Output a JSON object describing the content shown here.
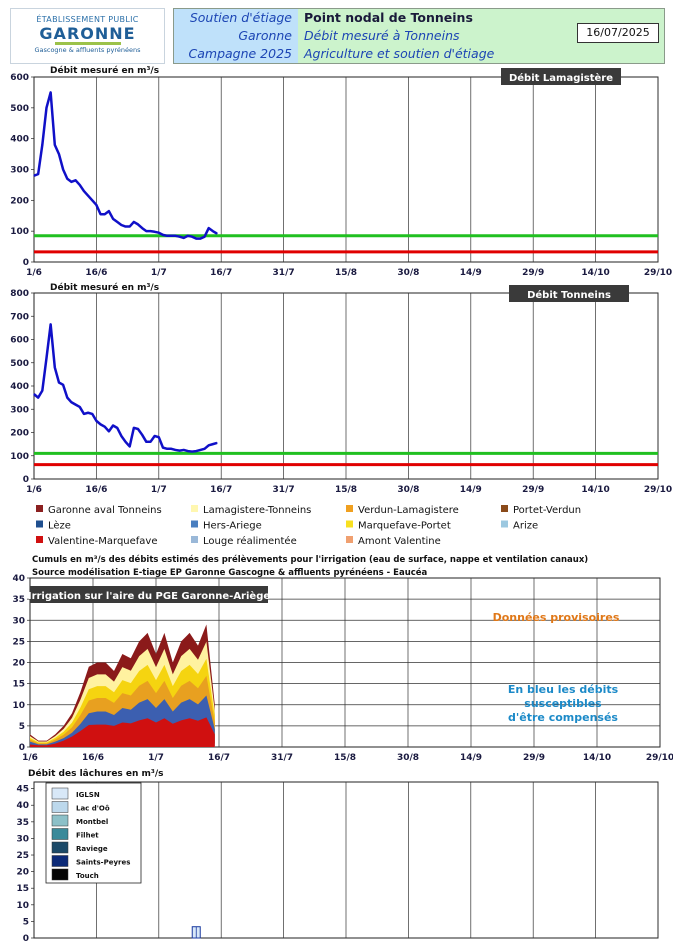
{
  "header": {
    "logo": {
      "line1": "ÉTABLISSEMENT PUBLIC",
      "line2": "GARONNE",
      "line3": "Gascogne & affluents pyrénéens"
    },
    "left_lines": [
      "Soutien d'étiage",
      "Garonne",
      "Campagne 2025"
    ],
    "right_lines": [
      "Point nodal de Tonneins",
      "Débit mesuré à Tonneins",
      "Agriculture et soutien d'étiage"
    ],
    "date": "16/07/2025"
  },
  "colors": {
    "flow": "#1010c8",
    "green_threshold": "#20c020",
    "red_threshold": "#e00000",
    "grid": "#222222",
    "title_box": "#3a3a3a"
  },
  "x_axis_dates": [
    "1/6",
    "16/6",
    "1/7",
    "16/7",
    "31/7",
    "15/8",
    "30/8",
    "14/9",
    "29/9",
    "14/10",
    "29/10"
  ],
  "chart_data": [
    {
      "type": "line",
      "title": "Débit Lamagistère",
      "ylabel": "Débit mesuré en m³/s",
      "ylim": [
        0,
        600
      ],
      "y_ticks": [
        0,
        100,
        200,
        300,
        400,
        500,
        600
      ],
      "x_range_days": [
        0,
        150
      ],
      "x": [
        0,
        1,
        2,
        3,
        4,
        5,
        6,
        7,
        8,
        9,
        10,
        11,
        12,
        13,
        14,
        15,
        16,
        17,
        18,
        19,
        20,
        21,
        22,
        23,
        24,
        25,
        26,
        27,
        28,
        29,
        30,
        31,
        32,
        33,
        34,
        35,
        36,
        37,
        38,
        39,
        40,
        41,
        42,
        43,
        44
      ],
      "values": [
        280,
        285,
        380,
        500,
        550,
        380,
        350,
        300,
        270,
        260,
        265,
        250,
        230,
        215,
        200,
        185,
        155,
        155,
        165,
        140,
        130,
        120,
        115,
        115,
        130,
        122,
        110,
        100,
        100,
        98,
        95,
        88,
        85,
        85,
        85,
        82,
        78,
        85,
        82,
        76,
        76,
        82,
        110,
        100,
        92
      ],
      "thresholds": [
        {
          "value": 85,
          "color": "#20c020"
        },
        {
          "value": 33,
          "color": "#e00000"
        }
      ]
    },
    {
      "type": "line",
      "title": "Débit Tonneins",
      "ylabel": "Débit mesuré en m³/s",
      "ylim": [
        0,
        800
      ],
      "y_ticks": [
        0,
        100,
        200,
        300,
        400,
        500,
        600,
        700,
        800
      ],
      "x_range_days": [
        0,
        150
      ],
      "x": [
        0,
        1,
        2,
        3,
        4,
        5,
        6,
        7,
        8,
        9,
        10,
        11,
        12,
        13,
        14,
        15,
        16,
        17,
        18,
        19,
        20,
        21,
        22,
        23,
        24,
        25,
        26,
        27,
        28,
        29,
        30,
        31,
        32,
        33,
        34,
        35,
        36,
        37,
        38,
        39,
        40,
        41,
        42,
        43,
        44
      ],
      "values": [
        365,
        350,
        380,
        520,
        665,
        480,
        415,
        405,
        350,
        330,
        320,
        310,
        280,
        285,
        280,
        250,
        235,
        225,
        205,
        230,
        220,
        185,
        160,
        140,
        220,
        215,
        190,
        160,
        160,
        185,
        180,
        135,
        130,
        130,
        125,
        122,
        125,
        120,
        118,
        120,
        125,
        130,
        145,
        150,
        155
      ],
      "thresholds": [
        {
          "value": 110,
          "color": "#20c020"
        },
        {
          "value": 62,
          "color": "#e00000"
        }
      ]
    },
    {
      "type": "area",
      "title": "Irrigation sur l'aire du PGE Garonne-Ariège",
      "subtitle_lines": [
        "Cumuls en m³/s des débits estimés des prélèvements pour l'irrigation (eau de surface, nappe et ventilation canaux)",
        "Source modélisation E-tiage EP Garonne Gascogne & affluents pyrénéens - Eaucéa"
      ],
      "ylim": [
        0,
        40
      ],
      "y_ticks": [
        0,
        5,
        10,
        15,
        20,
        25,
        30,
        35,
        40
      ],
      "x_range_days": [
        0,
        150
      ],
      "x": [
        0,
        2,
        4,
        6,
        8,
        10,
        12,
        14,
        16,
        18,
        20,
        22,
        24,
        26,
        28,
        30,
        32,
        34,
        36,
        38,
        40,
        42,
        44
      ],
      "total": [
        3,
        1.5,
        1.5,
        3,
        5,
        8,
        13,
        19,
        20,
        20,
        18,
        22,
        21,
        25,
        27,
        22,
        27,
        20,
        25,
        27,
        24,
        29,
        10
      ],
      "layer_colors": [
        "#d0c8de",
        "#3c5fb0",
        "#e8a020",
        "#f5d410",
        "#fff2a0",
        "#8b1a1a"
      ],
      "bottom_red": [
        0.6,
        0.4,
        0.4,
        0.8,
        1.5,
        2.5,
        3.8,
        5.2,
        5.3,
        5.3,
        5,
        5.8,
        5.6,
        6.3,
        6.8,
        5.8,
        6.8,
        5.5,
        6.3,
        6.8,
        6.2,
        7,
        3
      ],
      "annotations": {
        "provisional": "Données provisoires",
        "blue_note": [
          "En bleu les débits",
          "susceptibles",
          "d'être compensés"
        ]
      },
      "legend": [
        {
          "label": "Garonne aval Tonneins",
          "color": "#8b2020"
        },
        {
          "label": "Lamagistere-Tonneins",
          "color": "#fff7b0"
        },
        {
          "label": "Verdun-Lamagistere",
          "color": "#f0a020"
        },
        {
          "label": "Portet-Verdun",
          "color": "#8a4a1a"
        },
        {
          "label": "Lèze",
          "color": "#1f4f8f"
        },
        {
          "label": "Hers-Ariege",
          "color": "#4a7fc0"
        },
        {
          "label": "Marquefave-Portet",
          "color": "#f8e020"
        },
        {
          "label": "Arize",
          "color": "#9cc8e0"
        },
        {
          "label": "Valentine-Marquefave",
          "color": "#d01010"
        },
        {
          "label": "Louge réalimentée",
          "color": "#9ab8d8"
        },
        {
          "label": "Amont Valentine",
          "color": "#f0a070"
        }
      ]
    },
    {
      "type": "bar",
      "title": "Débit des lâchures en m³/s",
      "ylim": [
        0,
        47
      ],
      "y_ticks": [
        0,
        5,
        10,
        15,
        20,
        25,
        30,
        35,
        40,
        45
      ],
      "x_range_days": [
        0,
        150
      ],
      "bars": [
        {
          "day": 39,
          "value": 3.4,
          "series": "IGLSN"
        }
      ],
      "series": [
        {
          "name": "IGLSN",
          "color": "#d8e8f8"
        },
        {
          "name": "Lac d'Oô",
          "color": "#bcd8ec"
        },
        {
          "name": "Montbel",
          "color": "#8cc0c8"
        },
        {
          "name": "Filhet",
          "color": "#3a8a9a"
        },
        {
          "name": "Raviege",
          "color": "#1c4a68"
        },
        {
          "name": "Saints-Peyres",
          "color": "#0c2a78"
        },
        {
          "name": "Touch",
          "color": "#050505"
        }
      ]
    }
  ]
}
